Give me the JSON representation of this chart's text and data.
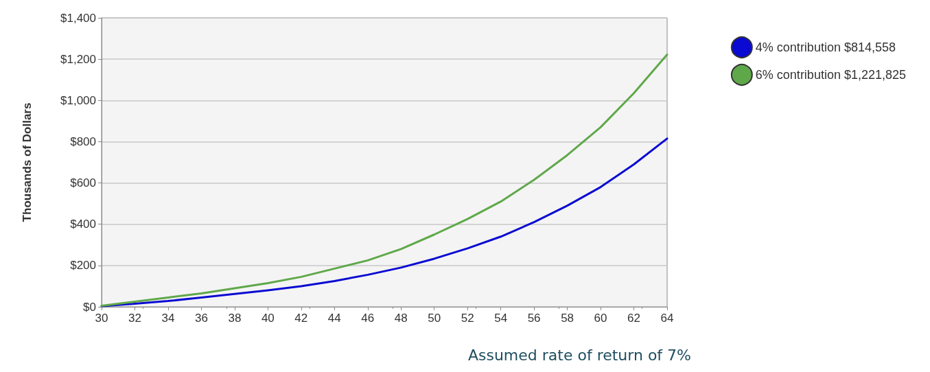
{
  "chart_data": {
    "type": "line",
    "ylabel": "Thousands of Dollars",
    "annotations": [
      "Assumed rate of return of 7%"
    ],
    "x": [
      30,
      32,
      34,
      36,
      38,
      40,
      42,
      44,
      46,
      48,
      50,
      52,
      54,
      56,
      58,
      60,
      62,
      64
    ],
    "series": [
      {
        "name": "4% contribution $814,558",
        "color": "#0a0ad2",
        "values": [
          3,
          15,
          28,
          45,
          62,
          80,
          100,
          125,
          155,
          190,
          233,
          283,
          340,
          410,
          490,
          580,
          690,
          815
        ]
      },
      {
        "name": "6% contribution $1,221,825",
        "color": "#5fa84a",
        "values": [
          5,
          25,
          45,
          65,
          90,
          115,
          145,
          185,
          225,
          280,
          350,
          425,
          510,
          615,
          735,
          870,
          1035,
          1222
        ]
      }
    ],
    "xlim": [
      30,
      64
    ],
    "xticks": [
      30,
      32,
      34,
      36,
      38,
      40,
      42,
      44,
      46,
      48,
      50,
      52,
      54,
      56,
      58,
      60,
      62,
      64
    ],
    "ylim": [
      0,
      1400
    ],
    "yticks": [
      {
        "value": 0,
        "label": "$0"
      },
      {
        "value": 200,
        "label": "$200"
      },
      {
        "value": 400,
        "label": "$400"
      },
      {
        "value": 600,
        "label": "$600"
      },
      {
        "value": 800,
        "label": "$800"
      },
      {
        "value": 1000,
        "label": "$1,000"
      },
      {
        "value": 1200,
        "label": "$1,200"
      },
      {
        "value": 1400,
        "label": "$1,400"
      }
    ],
    "grid": "y",
    "legend": "top right",
    "marker": "none",
    "line_style": "solid"
  }
}
